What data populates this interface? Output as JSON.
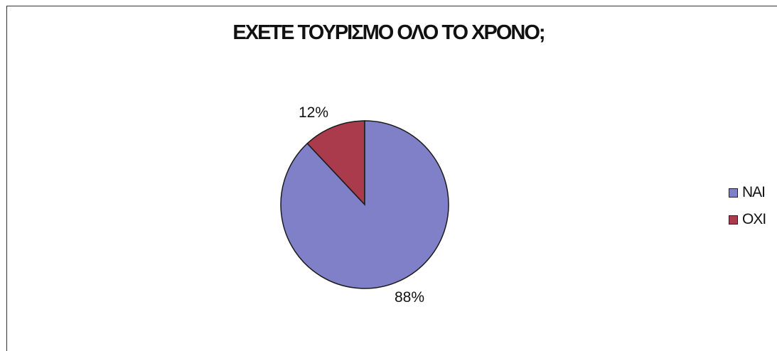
{
  "chart_data": {
    "type": "pie",
    "title": "ΕΧΕΤΕ ΤΟΥΡΙΣΜΟ ΟΛΟ ΤΟ ΧΡΟΝΟ;",
    "categories": [
      "ΝΑΙ",
      "ΟΧΙ"
    ],
    "values": [
      88,
      12
    ],
    "value_labels": [
      "88%",
      "12%"
    ],
    "colors": [
      "#8080c8",
      "#aa3b4c"
    ],
    "legend_position": "right"
  }
}
